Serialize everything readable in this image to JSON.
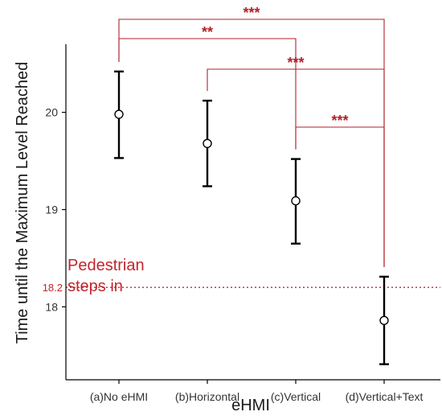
{
  "chart_data": {
    "type": "scatter",
    "xlabel": "eHMI",
    "ylabel": "Time until the Maximum Level Reached",
    "categories": [
      "(a)No eHMI",
      "(b)Horizontal",
      "(c)Vertical",
      "(d)Vertical+Text"
    ],
    "means": [
      19.98,
      19.68,
      19.09,
      17.86
    ],
    "ci_low": [
      19.53,
      19.24,
      18.65,
      17.41
    ],
    "ci_high": [
      20.42,
      20.12,
      19.52,
      18.31
    ],
    "ylim": [
      17.25,
      20.7
    ],
    "yticks": [
      18,
      19,
      20
    ],
    "grid": false,
    "reference_line": {
      "value": 18.2,
      "label": "18.2",
      "annotation": "Pedestrian\nsteps in"
    },
    "significance": [
      {
        "from": 0,
        "to": 3,
        "label": "***"
      },
      {
        "from": 0,
        "to": 2,
        "label": "**"
      },
      {
        "from": 1,
        "to": 3,
        "label": "***"
      },
      {
        "from": 2,
        "to": 3,
        "label": "***"
      }
    ],
    "colors": {
      "point": "#000000",
      "reference": "#c0262d",
      "bracket": "#b2222a"
    }
  }
}
